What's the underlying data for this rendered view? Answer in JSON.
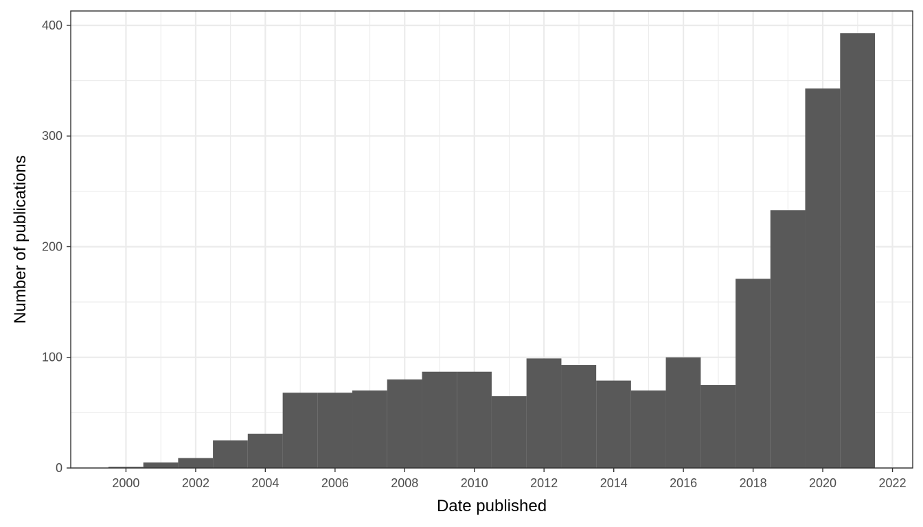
{
  "chart_data": {
    "type": "bar",
    "title": "",
    "xlabel": "Date published",
    "ylabel": "Number of publications",
    "bins": [
      {
        "start": "1999-07-01",
        "end": "2000-07-01",
        "value": 1
      },
      {
        "start": "2000-07-01",
        "end": "2001-07-01",
        "value": 5
      },
      {
        "start": "2001-07-01",
        "end": "2002-07-01",
        "value": 9
      },
      {
        "start": "2002-07-01",
        "end": "2003-07-01",
        "value": 25
      },
      {
        "start": "2003-07-01",
        "end": "2004-07-01",
        "value": 31
      },
      {
        "start": "2004-07-01",
        "end": "2005-07-01",
        "value": 68
      },
      {
        "start": "2005-07-01",
        "end": "2006-07-01",
        "value": 68
      },
      {
        "start": "2006-07-01",
        "end": "2007-07-01",
        "value": 70
      },
      {
        "start": "2007-07-01",
        "end": "2008-07-01",
        "value": 80
      },
      {
        "start": "2008-07-01",
        "end": "2009-07-01",
        "value": 87
      },
      {
        "start": "2009-07-01",
        "end": "2010-07-01",
        "value": 87
      },
      {
        "start": "2010-07-01",
        "end": "2011-07-01",
        "value": 65
      },
      {
        "start": "2011-07-01",
        "end": "2012-07-01",
        "value": 99
      },
      {
        "start": "2012-07-01",
        "end": "2013-07-01",
        "value": 93
      },
      {
        "start": "2013-07-01",
        "end": "2014-07-01",
        "value": 79
      },
      {
        "start": "2014-07-01",
        "end": "2015-07-01",
        "value": 70
      },
      {
        "start": "2015-07-01",
        "end": "2016-07-01",
        "value": 100
      },
      {
        "start": "2016-07-01",
        "end": "2017-07-01",
        "value": 75
      },
      {
        "start": "2017-07-01",
        "end": "2018-07-01",
        "value": 171
      },
      {
        "start": "2018-07-01",
        "end": "2019-07-01",
        "value": 233
      },
      {
        "start": "2019-07-01",
        "end": "2020-07-01",
        "value": 343
      },
      {
        "start": "2020-07-01",
        "end": "2021-07-01",
        "value": 393
      }
    ],
    "x_ticks": [
      "2000",
      "2002",
      "2004",
      "2006",
      "2008",
      "2010",
      "2012",
      "2014",
      "2016",
      "2018",
      "2020",
      "2022"
    ],
    "y_ticks": [
      0,
      100,
      200,
      300,
      400
    ],
    "xlim": [
      "1998-06-01",
      "2022-08-01"
    ],
    "ylim": [
      0,
      413
    ],
    "grid": true,
    "bar_color": "#595959",
    "grid_color": "#ebebeb",
    "theme": "bw"
  }
}
